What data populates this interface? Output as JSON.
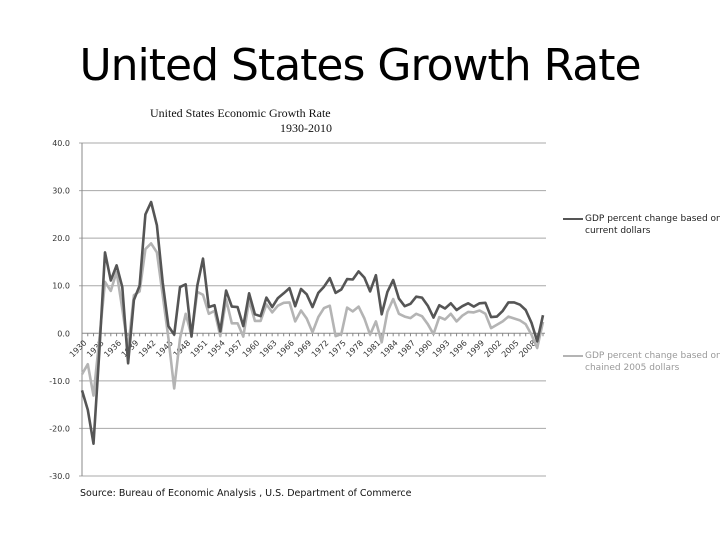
{
  "slide_title": "United States Growth Rate",
  "source": "Source: Bureau of Economic Analysis , U.S. Department of Commerce",
  "chart_data": {
    "type": "line",
    "title": "United States Economic Growth Rate",
    "subtitle": "1930-2010",
    "xlabel": "",
    "ylabel": "",
    "ylim": [
      -30,
      40
    ],
    "yticks": [
      "40.0",
      "30.0",
      "20.0",
      "10.0",
      "0.0",
      "-10.0",
      "-20.0",
      "-30.0"
    ],
    "ytick_values": [
      40,
      30,
      20,
      10,
      0,
      -10,
      -20,
      -30
    ],
    "grid": true,
    "legend_position": "right",
    "x_start": 1930,
    "x_end": 2010,
    "xtick_labels": [
      "1930",
      "1933",
      "1936",
      "1939",
      "1942",
      "1945",
      "1948",
      "1951",
      "1954",
      "1957",
      "1960",
      "1963",
      "1966",
      "1969",
      "1972",
      "1975",
      "1978",
      "1981",
      "1984",
      "1987",
      "1990",
      "1993",
      "1996",
      "1999",
      "2002",
      "2005",
      "2008"
    ],
    "series": [
      {
        "name": "GDP percent change based on current dollars",
        "color": "#555555",
        "values": [
          -12.0,
          -16.1,
          -23.2,
          -4.0,
          17.0,
          11.1,
          14.3,
          9.7,
          -6.3,
          7.0,
          10.0,
          25.0,
          27.6,
          22.7,
          10.7,
          1.5,
          -0.3,
          9.7,
          10.3,
          -0.7,
          10.0,
          15.7,
          5.5,
          5.9,
          0.4,
          9.0,
          5.6,
          5.5,
          1.5,
          8.4,
          4.0,
          3.6,
          7.5,
          5.5,
          7.4,
          8.4,
          9.5,
          5.7,
          9.3,
          8.2,
          5.5,
          8.5,
          9.8,
          11.6,
          8.5,
          9.2,
          11.4,
          11.3,
          13.0,
          11.7,
          8.8,
          12.2,
          4.0,
          8.7,
          11.2,
          7.3,
          5.7,
          6.2,
          7.7,
          7.5,
          5.8,
          3.3,
          5.9,
          5.2,
          6.3,
          4.9,
          5.7,
          6.3,
          5.6,
          6.3,
          6.4,
          3.4,
          3.5,
          4.7,
          6.5,
          6.5,
          6.0,
          4.9,
          2.2,
          -1.7,
          3.8
        ]
      },
      {
        "name": "GDP percent change based on chained 2005 dollars",
        "color": "#b4b4b4",
        "values": [
          -8.6,
          -6.5,
          -13.1,
          -1.3,
          10.8,
          8.9,
          12.9,
          5.1,
          -3.3,
          8.0,
          8.8,
          17.7,
          18.9,
          17.0,
          8.0,
          -1.0,
          -11.6,
          -1.1,
          4.1,
          -0.5,
          8.7,
          8.1,
          4.1,
          4.7,
          -0.6,
          7.1,
          2.1,
          2.1,
          -0.7,
          6.9,
          2.6,
          2.6,
          6.1,
          4.4,
          5.8,
          6.4,
          6.5,
          2.5,
          4.8,
          3.1,
          0.2,
          3.4,
          5.3,
          5.8,
          -0.6,
          -0.2,
          5.4,
          4.6,
          5.6,
          3.1,
          -0.3,
          2.5,
          -1.9,
          4.5,
          7.2,
          4.1,
          3.5,
          3.2,
          4.1,
          3.6,
          1.9,
          -0.2,
          3.4,
          2.9,
          4.1,
          2.5,
          3.7,
          4.5,
          4.4,
          4.8,
          4.1,
          1.1,
          1.8,
          2.5,
          3.5,
          3.1,
          2.7,
          1.9,
          -0.3,
          -3.1,
          2.4
        ]
      }
    ]
  }
}
